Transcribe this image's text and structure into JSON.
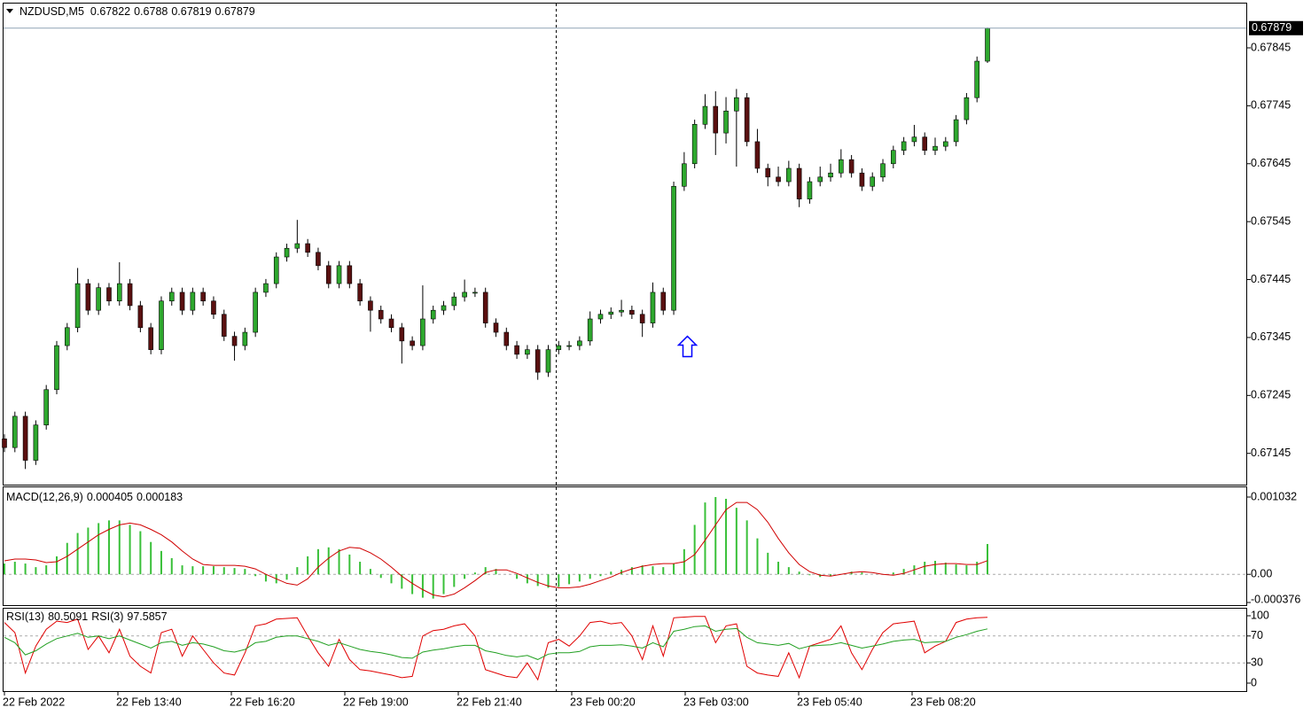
{
  "chart_data": {
    "type": "candlestick",
    "symbol": "NZDUSD,M5",
    "open": [
      0.6717,
      0.67155,
      0.67209,
      0.67133,
      0.67194,
      0.67255,
      0.67331,
      0.67362,
      0.67438,
      0.67392,
      0.67431,
      0.67408,
      0.67438,
      0.674,
      0.67362,
      0.67324,
      0.67408,
      0.67423,
      0.67392,
      0.67423,
      0.67408,
      0.67385,
      0.67347,
      0.67331,
      0.67354,
      0.67423,
      0.67438,
      0.67484,
      0.67499,
      0.67507,
      0.67492,
      0.67469,
      0.67438,
      0.67469,
      0.67438,
      0.67408,
      0.67392,
      0.67377,
      0.67362,
      0.67339,
      0.67331,
      0.67377,
      0.67392,
      0.674,
      0.67415,
      0.67423,
      0.67423,
      0.6737,
      0.67354,
      0.67331,
      0.67316,
      0.67324,
      0.67285,
      0.67324,
      0.67331,
      0.67331,
      0.67339,
      0.67377,
      0.67385,
      0.67389,
      0.67392,
      0.67385,
      0.6737,
      0.67423,
      0.67392,
      0.67606,
      0.67645,
      0.67713,
      0.67744,
      0.67698,
      0.67736,
      0.67759,
      0.67683,
      0.67637,
      0.67622,
      0.67614,
      0.67637,
      0.67584,
      0.67614,
      0.67622,
      0.67629,
      0.67652,
      0.67629,
      0.67606,
      0.67622,
      0.67645,
      0.67668,
      0.67683,
      0.67691,
      0.67668,
      0.67675,
      0.67683,
      0.67721,
      0.67759,
      0.67822
    ],
    "high": [
      0.67178,
      0.67217,
      0.67217,
      0.67202,
      0.67263,
      0.67339,
      0.6737,
      0.67465,
      0.67446,
      0.67439,
      0.67439,
      0.67475,
      0.67446,
      0.67408,
      0.6737,
      0.67416,
      0.67431,
      0.67431,
      0.67431,
      0.67431,
      0.67416,
      0.67393,
      0.67355,
      0.67362,
      0.67431,
      0.67446,
      0.67492,
      0.67507,
      0.67548,
      0.67515,
      0.675,
      0.67477,
      0.67477,
      0.67477,
      0.67446,
      0.67416,
      0.674,
      0.67385,
      0.6737,
      0.67347,
      0.67435,
      0.674,
      0.67408,
      0.67423,
      0.67445,
      0.67431,
      0.67431,
      0.67378,
      0.67362,
      0.67339,
      0.67332,
      0.67332,
      0.67332,
      0.67339,
      0.67339,
      0.67347,
      0.6739,
      0.67393,
      0.67397,
      0.6741,
      0.674,
      0.67393,
      0.6744,
      0.67431,
      0.67614,
      0.67665,
      0.67721,
      0.67765,
      0.6777,
      0.6776,
      0.67774,
      0.67767,
      0.67705,
      0.67645,
      0.6764,
      0.6765,
      0.67645,
      0.67622,
      0.6764,
      0.67645,
      0.6767,
      0.6766,
      0.67637,
      0.6763,
      0.67653,
      0.67676,
      0.67691,
      0.67712,
      0.67699,
      0.6769,
      0.67691,
      0.67729,
      0.67767,
      0.6783,
      0.6788
    ],
    "low": [
      0.67147,
      0.67147,
      0.67118,
      0.67125,
      0.67186,
      0.67247,
      0.67323,
      0.67354,
      0.67384,
      0.67384,
      0.674,
      0.674,
      0.67392,
      0.67354,
      0.67316,
      0.67316,
      0.674,
      0.67384,
      0.67384,
      0.674,
      0.67377,
      0.67339,
      0.67305,
      0.67323,
      0.67346,
      0.67415,
      0.6743,
      0.67476,
      0.67491,
      0.67484,
      0.67461,
      0.6743,
      0.6743,
      0.6743,
      0.674,
      0.67355,
      0.67369,
      0.67354,
      0.673,
      0.67323,
      0.67323,
      0.67369,
      0.67384,
      0.67392,
      0.67407,
      0.67415,
      0.67362,
      0.67346,
      0.67323,
      0.67308,
      0.67308,
      0.67272,
      0.67277,
      0.67316,
      0.67323,
      0.67323,
      0.67331,
      0.67369,
      0.67377,
      0.67381,
      0.67377,
      0.67346,
      0.67362,
      0.67384,
      0.67384,
      0.67598,
      0.67637,
      0.67705,
      0.6766,
      0.6768,
      0.6764,
      0.67675,
      0.67629,
      0.67606,
      0.67606,
      0.67606,
      0.6757,
      0.67576,
      0.67606,
      0.67614,
      0.67621,
      0.67621,
      0.67598,
      0.67598,
      0.67614,
      0.67637,
      0.6766,
      0.67675,
      0.6766,
      0.6766,
      0.67667,
      0.67675,
      0.67713,
      0.67751,
      0.67819
    ],
    "close": [
      0.67155,
      0.67209,
      0.67133,
      0.67194,
      0.67255,
      0.67331,
      0.67362,
      0.67438,
      0.67392,
      0.67431,
      0.67408,
      0.67438,
      0.674,
      0.67362,
      0.67324,
      0.67408,
      0.67423,
      0.67392,
      0.67423,
      0.67408,
      0.67385,
      0.67347,
      0.67331,
      0.67354,
      0.67423,
      0.67438,
      0.67484,
      0.67499,
      0.67507,
      0.67492,
      0.67469,
      0.67438,
      0.67469,
      0.67438,
      0.67408,
      0.67392,
      0.67377,
      0.67362,
      0.67339,
      0.67331,
      0.67377,
      0.67392,
      0.674,
      0.67415,
      0.67423,
      0.67423,
      0.6737,
      0.67354,
      0.67331,
      0.67316,
      0.67324,
      0.67285,
      0.67324,
      0.67331,
      0.67331,
      0.67339,
      0.67377,
      0.67385,
      0.67389,
      0.67392,
      0.67385,
      0.6737,
      0.67423,
      0.67392,
      0.67606,
      0.67645,
      0.67713,
      0.67744,
      0.67698,
      0.67736,
      0.67759,
      0.67683,
      0.67637,
      0.67622,
      0.67614,
      0.67637,
      0.67584,
      0.67614,
      0.67622,
      0.67629,
      0.67652,
      0.67629,
      0.67606,
      0.67622,
      0.67645,
      0.67668,
      0.67683,
      0.67691,
      0.67668,
      0.67675,
      0.67683,
      0.67721,
      0.67759,
      0.67822,
      0.67879
    ],
    "up_color": "#2ea82e",
    "down_color": "#5a1010",
    "ylim": [
      0.67091,
      0.67923
    ],
    "yticks": [
      0.67145,
      0.67245,
      0.67345,
      0.67445,
      0.67545,
      0.67645,
      0.67745,
      0.67845
    ],
    "time_labels": [
      "22 Feb 2022",
      "22 Feb 13:40",
      "22 Feb 16:20",
      "22 Feb 19:00",
      "22 Feb 21:40",
      "23 Feb 00:20",
      "23 Feb 03:00",
      "23 Feb 05:40",
      "23 Feb 08:20"
    ],
    "macd": {
      "name": "MACD(12,26,9)",
      "histogram_color": "#39c039",
      "signal_color": "#d00000",
      "histogram": [
        0.000144,
        0.000168,
        0.000144,
        9.6e-05,
        0.00012,
        0.00024,
        0.00042,
        0.000552,
        0.000624,
        0.000684,
        0.00072,
        0.00072,
        0.00066,
        0.000576,
        0.000432,
        0.000312,
        0.000216,
        0.00012,
        0.000108,
        0.000108,
        0.000108,
        9.6e-05,
        8.4e-05,
        7.2e-05,
        -2.4e-05,
        -9.6e-05,
        -0.00012,
        -7.2e-05,
        9.6e-05,
        0.00024,
        0.000336,
        0.00036,
        0.000336,
        0.000264,
        0.000168,
        7.2e-05,
        -4.8e-05,
        -0.00012,
        -0.000192,
        -0.000264,
        -0.000312,
        -0.000324,
        -0.000264,
        -0.000168,
        -6e-05,
        2.4e-05,
        9.6e-05,
        7.2e-05,
        0,
        -6e-05,
        -0.00012,
        -0.000156,
        -0.00018,
        -0.000168,
        -0.000132,
        -9.6e-05,
        -6e-05,
        -2.4e-05,
        3.6e-05,
        6e-05,
        9.6e-05,
        0.00012,
        0.000108,
        9.6e-05,
        0.000144,
        0.000336,
        0.00066,
        0.00096,
        0.001032,
        0.001008,
        0.000888,
        0.00072,
        0.00048,
        0.000288,
        0.000168,
        9.6e-05,
        3.6e-05,
        -1.2e-05,
        -3.6e-05,
        -2.4e-05,
        0,
        3.6e-05,
        2.4e-05,
        0,
        0,
        2.4e-05,
        7.2e-05,
        0.00012,
        0.000168,
        0.00018,
        0.000156,
        0.000132,
        0.00012,
        0.000168,
        0.000405
      ],
      "signal": [
        0.00018,
        0.000204,
        0.000204,
        0.000192,
        0.000156,
        0.000168,
        0.00024,
        0.000336,
        0.000432,
        0.000528,
        0.0006,
        0.00066,
        0.000684,
        0.00066,
        0.0006,
        0.000528,
        0.000432,
        0.000312,
        0.000204,
        0.000132,
        0.00012,
        0.00012,
        0.00012,
        0.000108,
        7.2e-05,
        0,
        -6e-05,
        -0.00012,
        -0.000144,
        -6e-05,
        9.6e-05,
        0.000216,
        0.000312,
        0.00036,
        0.000348,
        0.000288,
        0.000204,
        9.6e-05,
        -2.4e-05,
        -0.00012,
        -0.000204,
        -0.000276,
        -0.0003,
        -0.000264,
        -0.00018,
        -8.4e-05,
        2.4e-05,
        6e-05,
        6e-05,
        1.2e-05,
        -4.8e-05,
        -0.000108,
        -0.000156,
        -0.00018,
        -0.00018,
        -0.000168,
        -0.000132,
        -8.4e-05,
        -3.6e-05,
        2.4e-05,
        7.2e-05,
        0.000108,
        0.000132,
        0.000144,
        0.000144,
        0.000168,
        0.000264,
        0.000456,
        0.00066,
        0.000864,
        0.00096,
        0.00096,
        0.000864,
        0.000696,
        0.00048,
        0.000288,
        0.000132,
        3.6e-05,
        -1.2e-05,
        -2.4e-05,
        0,
        2.4e-05,
        3.6e-05,
        2.4e-05,
        0,
        -1.2e-05,
        1.2e-05,
        6e-05,
        0.000108,
        0.000132,
        0.000144,
        0.000144,
        0.000132,
        0.000132,
        0.000183
      ],
      "ylim": [
        -0.000376,
        0.001032
      ],
      "yticks": [
        0.001032,
        {
          "value": 0,
          "label": "0.00"
        },
        -0.000376
      ]
    },
    "rsi": {
      "series": [
        {
          "name": "RSI(13)",
          "color": "#22a022",
          "values": [
            68,
            60,
            42,
            48,
            58,
            66,
            70,
            74,
            68,
            70,
            66,
            70,
            64,
            58,
            52,
            60,
            62,
            56,
            60,
            58,
            54,
            48,
            46,
            50,
            60,
            62,
            68,
            70,
            70,
            66,
            62,
            56,
            60,
            55,
            50,
            47,
            45,
            42,
            38,
            37,
            46,
            49,
            51,
            54,
            56,
            56,
            48,
            45,
            41,
            39,
            41,
            35,
            43,
            45,
            45,
            47,
            54,
            56,
            56,
            57,
            55,
            52,
            60,
            54,
            77,
            80,
            84,
            85,
            77,
            80,
            81,
            68,
            60,
            58,
            56,
            59,
            51,
            55,
            56,
            57,
            60,
            56,
            52,
            55,
            58,
            62,
            64,
            65,
            60,
            61,
            62,
            68,
            72,
            77,
            80.5091
          ]
        },
        {
          "name": "RSI(3)",
          "color": "#e00000",
          "values": [
            90,
            75,
            15,
            55,
            80,
            92,
            90,
            95,
            50,
            70,
            45,
            80,
            40,
            25,
            15,
            75,
            80,
            40,
            70,
            50,
            30,
            15,
            12,
            45,
            85,
            88,
            95,
            96,
            97,
            70,
            45,
            25,
            65,
            35,
            20,
            18,
            15,
            12,
            8,
            10,
            70,
            78,
            80,
            85,
            88,
            70,
            20,
            15,
            10,
            8,
            30,
            5,
            60,
            65,
            55,
            70,
            90,
            92,
            88,
            90,
            70,
            35,
            85,
            40,
            97,
            98,
            99,
            99,
            60,
            85,
            88,
            25,
            15,
            12,
            10,
            45,
            8,
            55,
            60,
            65,
            85,
            45,
            20,
            50,
            75,
            88,
            90,
            92,
            45,
            55,
            62,
            90,
            95,
            97,
            97.5857
          ]
        }
      ],
      "ylim": [
        0,
        100
      ],
      "yticks": [
        100,
        70,
        30,
        0
      ]
    }
  }
}
